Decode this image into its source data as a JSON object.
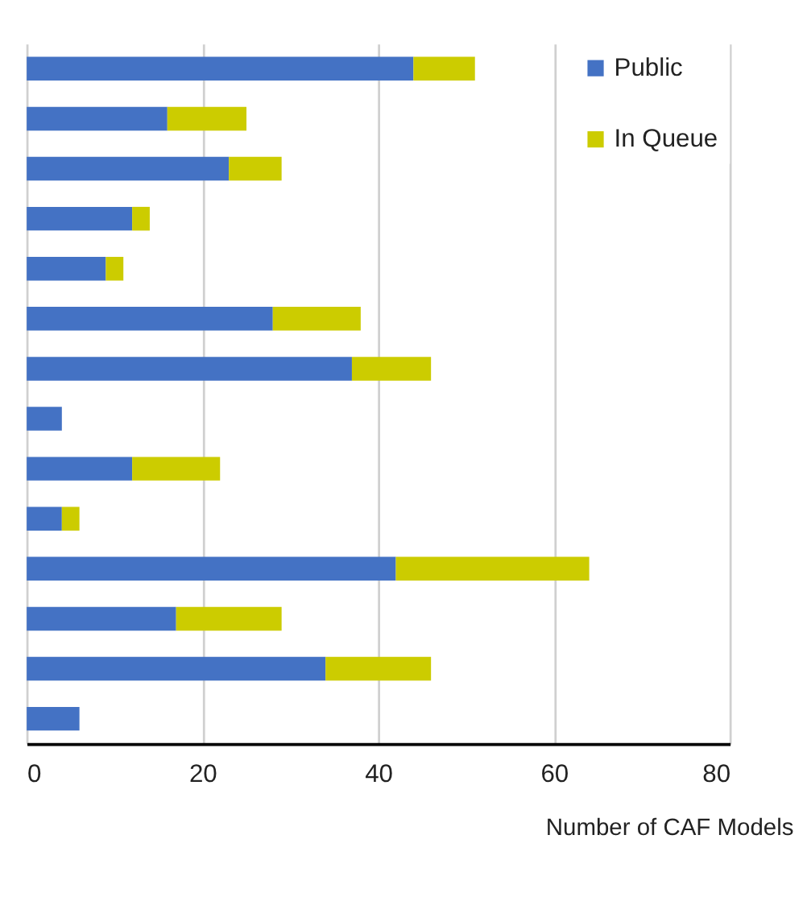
{
  "chart_data": {
    "type": "bar",
    "orientation": "horizontal",
    "stacked": true,
    "categories": [
      null,
      null,
      null,
      null,
      null,
      null,
      null,
      null,
      null,
      null,
      null,
      null,
      null,
      null
    ],
    "series": [
      {
        "name": "Public",
        "color": "#4472c4",
        "values": [
          44,
          16,
          23,
          12,
          9,
          28,
          37,
          4,
          12,
          4,
          42,
          17,
          34,
          6
        ]
      },
      {
        "name": "In Queue",
        "color": "#cccc00",
        "values": [
          7,
          9,
          6,
          2,
          2,
          10,
          9,
          0,
          10,
          2,
          22,
          12,
          12,
          0
        ]
      }
    ],
    "xlabel": "Number of CAF Models",
    "xlim": [
      0,
      80
    ],
    "xticks": [
      0,
      20,
      40,
      60,
      80
    ],
    "grid": "x",
    "legend": "top right",
    "tick_labels": "x"
  }
}
